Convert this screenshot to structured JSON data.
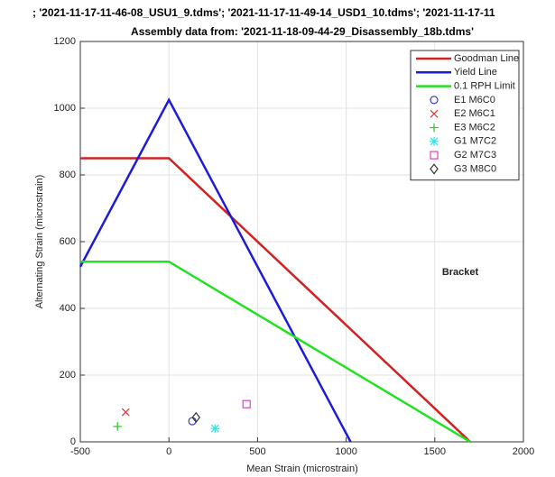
{
  "chart_data": {
    "type": "line",
    "title": "; '2021-11-17-11-46-08_USU1_9.tdms'; '2021-11-17-11-49-14_USD1_10.tdms'; '2021-11-17-11",
    "subtitle": "Assembly data from: '2021-11-18-09-44-29_Disassembly_18b.tdms'",
    "xlabel": "Mean Strain (microstrain)",
    "ylabel": "Alternating Strain (microstrain)",
    "annotation": "Bracket",
    "xlim": [
      -500,
      2000
    ],
    "ylim": [
      0,
      1200
    ],
    "xticks": [
      -500,
      0,
      500,
      1000,
      1500,
      2000
    ],
    "yticks": [
      0,
      200,
      400,
      600,
      800,
      1000,
      1200
    ],
    "grid": true,
    "legend": "top-right",
    "series": [
      {
        "name": "Goodman Line",
        "color": "#d42020",
        "x": [
          -500,
          0,
          1700
        ],
        "values": [
          850,
          850,
          0
        ]
      },
      {
        "name": "Yield Line",
        "color": "#1c1cd8",
        "x": [
          -500,
          0,
          1025
        ],
        "values": [
          525,
          1025,
          0
        ]
      },
      {
        "name": "0.1 RPH Limit",
        "color": "#22e022",
        "x": [
          -500,
          0,
          1700
        ],
        "values": [
          540,
          540,
          0
        ]
      },
      {
        "name": "E1 M6C0",
        "color": "#3838c8",
        "marker": "o",
        "x": [
          132
        ],
        "values": [
          62
        ]
      },
      {
        "name": "E2 M6C1",
        "color": "#e03030",
        "marker": "x",
        "x": [
          -244
        ],
        "values": [
          89
        ]
      },
      {
        "name": "E3 M6C2",
        "color": "#30c030",
        "marker": "+",
        "x": [
          -290
        ],
        "values": [
          46
        ]
      },
      {
        "name": "G1 M7C2",
        "color": "#30e4e4",
        "marker": "*",
        "x": [
          260
        ],
        "values": [
          40
        ]
      },
      {
        "name": "G2 M7C3",
        "color": "#e040c0",
        "marker": "s",
        "x": [
          438
        ],
        "values": [
          113
        ]
      },
      {
        "name": "G3 M8C0",
        "color": "#333333",
        "marker": "d",
        "x": [
          153
        ],
        "values": [
          73
        ]
      }
    ]
  }
}
